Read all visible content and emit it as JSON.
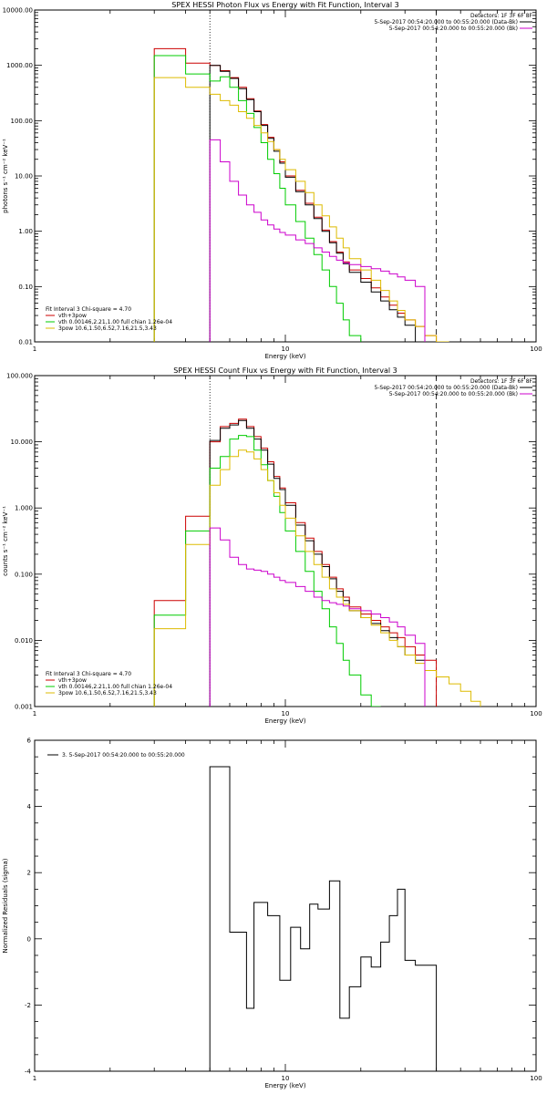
{
  "chart_data": [
    {
      "id": "photon",
      "type": "line",
      "title": "SPEX HESSI Photon Flux vs Energy with Fit Function, Interval 3",
      "xlabel": "Energy (keV)",
      "ylabel": "photons s⁻¹ cm⁻² keV⁻¹",
      "xscale": "log",
      "yscale": "log",
      "xlim": [
        1,
        100
      ],
      "ylim": [
        0.01,
        10000
      ],
      "xticks": [
        "1",
        "10",
        "100"
      ],
      "yticks": [
        "0.01",
        "0.10",
        "1.00",
        "10.00",
        "100.00",
        "1000.00",
        "10000.00"
      ],
      "vlines": [
        {
          "x": 5.0,
          "style": "dotted"
        },
        {
          "x": 40.0,
          "style": "dashed"
        }
      ],
      "legend_top": {
        "placement": "top-right",
        "header": "Detectors: 1F 3F 6F 8F",
        "entries": [
          {
            "text": "5-Sep-2017 00:54:20.000 to 00:55:20.000 (Data-Bk)",
            "color": "#000000"
          },
          {
            "text": "5-Sep-2017 00:54:20.000 to 00:55:20.000 (Bk)",
            "color": "#cc00cc"
          }
        ]
      },
      "legend_bottom": {
        "placement": "bottom-left",
        "header": "Fit Interval 3   Chi-square = 4.70",
        "entries": [
          {
            "text": "vth+3pow",
            "color": "#cc0000"
          },
          {
            "text": "vth 0.00146,2.21,1.00  full chian 1.26e-04",
            "color": "#00cc00"
          },
          {
            "text": "3pow 10.6,1.50,6.52,7.16,21.5,3.43",
            "color": "#ddbb00"
          }
        ]
      },
      "edges": [
        3.0,
        4.0,
        5.0,
        5.5,
        6.0,
        6.5,
        7.0,
        7.5,
        8.0,
        8.5,
        9.0,
        9.5,
        10.0,
        11.0,
        12.0,
        13.0,
        14.0,
        15.0,
        16.0,
        17.0,
        18.0,
        20.0,
        22.0,
        24.0,
        26.0,
        28.0,
        30.0,
        33.0,
        36.0,
        40.0,
        45.0,
        50.0
      ],
      "series": [
        {
          "key": "red",
          "color": "#cc0000",
          "values": [
            2000,
            1100,
            1000,
            800,
            600,
            400,
            250,
            150,
            85,
            50,
            30,
            18,
            10,
            5.5,
            3.2,
            1.8,
            1.05,
            0.65,
            0.42,
            0.28,
            0.2,
            0.14,
            0.095,
            0.065,
            0.046,
            0.033,
            0.025,
            0.019,
            0.013,
            null,
            null
          ]
        },
        {
          "key": "black",
          "color": "#000000",
          "values": [
            null,
            null,
            1000,
            780,
            580,
            380,
            240,
            145,
            82,
            48,
            28,
            17,
            9.5,
            5.2,
            3.0,
            1.7,
            1.0,
            0.62,
            0.4,
            0.26,
            0.18,
            0.12,
            0.08,
            0.055,
            0.038,
            0.028,
            0.02,
            null,
            null,
            null,
            null
          ]
        },
        {
          "key": "green",
          "color": "#00cc00",
          "values": [
            1500,
            700,
            520,
            620,
            400,
            230,
            135,
            75,
            40,
            20,
            11,
            6,
            3,
            1.5,
            0.75,
            0.38,
            0.2,
            0.1,
            0.05,
            0.025,
            0.013,
            null,
            null,
            null,
            null,
            null,
            null,
            null,
            null,
            null,
            null
          ]
        },
        {
          "key": "yellow",
          "color": "#ddbb00",
          "values": [
            600,
            400,
            300,
            230,
            190,
            145,
            110,
            82,
            60,
            42,
            30,
            20,
            13,
            8,
            5,
            3,
            1.9,
            1.2,
            0.75,
            0.5,
            0.32,
            0.2,
            0.13,
            0.085,
            0.055,
            0.037,
            0.025,
            0.019,
            0.013,
            0.01,
            null
          ]
        },
        {
          "key": "magenta",
          "color": "#cc00cc",
          "values": [
            null,
            null,
            45,
            18,
            8,
            4.5,
            3,
            2.2,
            1.6,
            1.3,
            1.1,
            0.95,
            0.85,
            0.7,
            0.6,
            0.5,
            0.42,
            0.35,
            0.3,
            0.27,
            0.25,
            0.23,
            0.21,
            0.19,
            0.17,
            0.15,
            0.13,
            0.1,
            null,
            null,
            null
          ]
        }
      ]
    },
    {
      "id": "count",
      "type": "line",
      "title": "SPEX HESSI Count Flux vs Energy with Fit Function, Interval 3",
      "xlabel": "Energy (keV)",
      "ylabel": "counts s⁻¹ cm⁻² keV⁻¹",
      "xscale": "log",
      "yscale": "log",
      "xlim": [
        1,
        100
      ],
      "ylim": [
        0.001,
        100
      ],
      "xticks": [
        "1",
        "10",
        "100"
      ],
      "yticks": [
        "0.001",
        "0.010",
        "0.100",
        "1.000",
        "10.000",
        "100.000"
      ],
      "vlines": [
        {
          "x": 5.0,
          "style": "dotted"
        },
        {
          "x": 40.0,
          "style": "dashed"
        }
      ],
      "legend_top": {
        "placement": "top-right",
        "header": "Detectors: 1F 3F 6F 8F",
        "entries": [
          {
            "text": "5-Sep-2017 00:54:20.000 to 00:55:20.000 (Data-Bk)",
            "color": "#000000"
          },
          {
            "text": "5-Sep-2017 00:54:20.000 to 00:55:20.000 (Bk)",
            "color": "#cc00cc"
          }
        ]
      },
      "legend_bottom": {
        "placement": "bottom-left",
        "header": "Fit Interval 3   Chi-square = 4.70",
        "entries": [
          {
            "text": "vth+3pow",
            "color": "#cc0000"
          },
          {
            "text": "vth 0.00146,2.21,1.00  full chian 1.26e-04",
            "color": "#00cc00"
          },
          {
            "text": "3pow 10.6,1.50,6.52,7.16,21.5,3.43",
            "color": "#ddbb00"
          }
        ]
      },
      "edges": [
        3.0,
        4.0,
        5.0,
        5.5,
        6.0,
        6.5,
        7.0,
        7.5,
        8.0,
        8.5,
        9.0,
        9.5,
        10.0,
        11.0,
        12.0,
        13.0,
        14.0,
        15.0,
        16.0,
        17.0,
        18.0,
        20.0,
        22.0,
        24.0,
        26.0,
        28.0,
        30.0,
        33.0,
        36.0,
        40.0,
        45.0,
        50.0,
        55.0,
        60.0
      ],
      "series": [
        {
          "key": "red",
          "color": "#cc0000",
          "values": [
            0.04,
            0.75,
            10,
            17,
            19,
            22,
            17,
            12,
            8,
            5,
            3,
            2,
            1.2,
            0.6,
            0.35,
            0.22,
            0.14,
            0.09,
            0.06,
            0.045,
            0.032,
            0.025,
            0.02,
            0.016,
            0.013,
            0.011,
            0.008,
            0.006,
            0.005,
            null,
            null,
            null,
            null
          ]
        },
        {
          "key": "black",
          "color": "#000000",
          "values": [
            null,
            null,
            10.5,
            16,
            18,
            21,
            16,
            11,
            7.5,
            4.6,
            2.8,
            1.9,
            1.1,
            0.55,
            0.32,
            0.2,
            0.13,
            0.085,
            0.055,
            0.04,
            0.028,
            0.022,
            0.018,
            0.014,
            0.011,
            0.008,
            0.006,
            0.005,
            null,
            null,
            null,
            null,
            null
          ]
        },
        {
          "key": "green",
          "color": "#00cc00",
          "values": [
            0.024,
            0.45,
            4,
            6,
            11,
            12.5,
            12,
            7.5,
            4.5,
            2.6,
            1.5,
            0.85,
            0.45,
            0.22,
            0.11,
            0.055,
            0.03,
            0.016,
            0.009,
            0.005,
            0.003,
            0.0015,
            0.001,
            null,
            null,
            null,
            null,
            null,
            null,
            null,
            null,
            null,
            null
          ]
        },
        {
          "key": "yellow",
          "color": "#ddbb00",
          "values": [
            0.015,
            0.28,
            2.2,
            3.8,
            6,
            7.5,
            7,
            5.5,
            3.8,
            2.6,
            1.7,
            1.1,
            0.7,
            0.38,
            0.22,
            0.14,
            0.09,
            0.06,
            0.045,
            0.035,
            0.028,
            0.022,
            0.017,
            0.013,
            0.01,
            0.008,
            0.006,
            0.0045,
            0.0035,
            0.0028,
            0.0022,
            0.0017,
            0.0012
          ]
        },
        {
          "key": "magenta",
          "color": "#cc00cc",
          "values": [
            null,
            null,
            0.5,
            0.33,
            0.18,
            0.14,
            0.12,
            0.115,
            0.11,
            0.1,
            0.09,
            0.08,
            0.075,
            0.065,
            0.055,
            0.045,
            0.04,
            0.037,
            0.035,
            0.033,
            0.03,
            0.028,
            0.025,
            0.022,
            0.019,
            0.016,
            0.012,
            0.009,
            null,
            null,
            null,
            null,
            null
          ]
        }
      ]
    },
    {
      "id": "residuals",
      "type": "line",
      "title": "",
      "xlabel": "Energy (keV)",
      "ylabel": "Normalized Residuals (sigma)",
      "xscale": "log",
      "yscale": "linear",
      "xlim": [
        1,
        100
      ],
      "ylim": [
        -4,
        6
      ],
      "xticks": [
        "1",
        "10",
        "100"
      ],
      "yticks": [
        "-4",
        "-2",
        "0",
        "2",
        "4",
        "6"
      ],
      "legend": {
        "placement": "top-left",
        "text": "3. 5-Sep-2017 00:54:20.000 to 00:55:20.000",
        "color": "#000000"
      },
      "edges": [
        5.0,
        6.0,
        7.0,
        7.5,
        8.5,
        9.5,
        10.5,
        11.5,
        12.5,
        13.5,
        15.0,
        16.5,
        18.0,
        20.0,
        22.0,
        24.0,
        26.0,
        28.0,
        30.0,
        33.0,
        36.0,
        40.0
      ],
      "series": [
        {
          "key": "residual",
          "color": "#000000",
          "values": [
            5.2,
            0.2,
            -2.1,
            1.1,
            0.7,
            -1.25,
            0.35,
            -0.3,
            1.05,
            0.9,
            1.75,
            -2.4,
            -1.45,
            -0.55,
            -0.85,
            -0.1,
            0.7,
            1.5,
            -0.65,
            -0.8,
            -0.8
          ]
        }
      ]
    }
  ]
}
